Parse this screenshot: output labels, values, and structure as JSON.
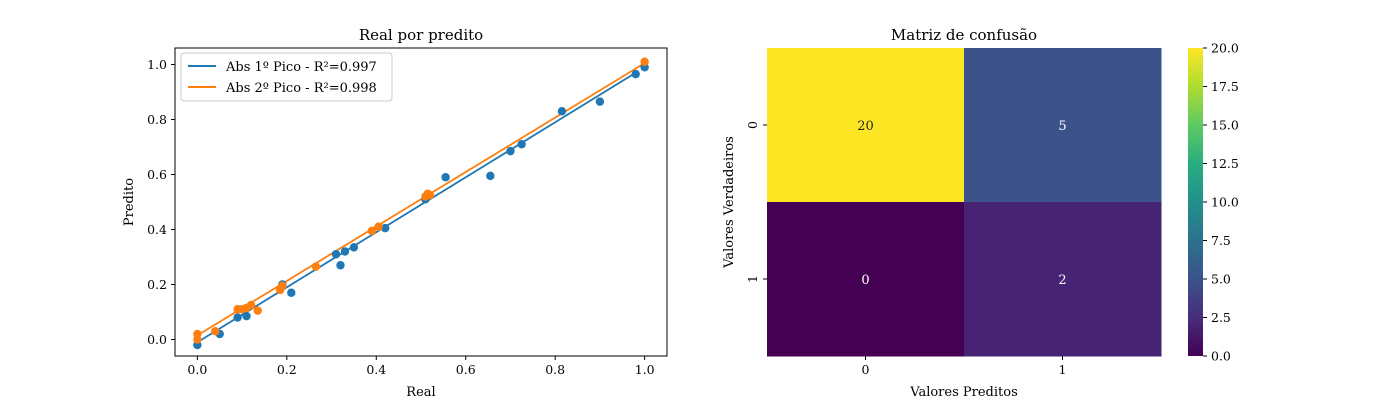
{
  "chart_data": [
    {
      "type": "scatter",
      "title": "Real por predito",
      "xlabel": "Real",
      "ylabel": "Predito",
      "xlim": [
        -0.05,
        1.05
      ],
      "ylim": [
        -0.06,
        1.06
      ],
      "xticks": [
        0.0,
        0.2,
        0.4,
        0.6,
        0.8,
        1.0
      ],
      "yticks": [
        0.0,
        0.2,
        0.4,
        0.6,
        0.8,
        1.0
      ],
      "xtick_labels": [
        "0.0",
        "0.2",
        "0.4",
        "0.6",
        "0.8",
        "1.0"
      ],
      "ytick_labels": [
        "0.0",
        "0.2",
        "0.4",
        "0.6",
        "0.8",
        "1.0"
      ],
      "grid": false,
      "legend_position": "top-left",
      "series": [
        {
          "name": "Abs 1º Pico - R²=0.997",
          "color": "#1f77b4",
          "fit": [
            [
              0.0,
              -0.01
            ],
            [
              0.98,
              0.97
            ]
          ],
          "points": [
            [
              0.0,
              -0.02
            ],
            [
              0.05,
              0.02
            ],
            [
              0.09,
              0.08
            ],
            [
              0.11,
              0.085
            ],
            [
              0.19,
              0.2
            ],
            [
              0.21,
              0.17
            ],
            [
              0.31,
              0.31
            ],
            [
              0.32,
              0.27
            ],
            [
              0.33,
              0.32
            ],
            [
              0.35,
              0.335
            ],
            [
              0.42,
              0.405
            ],
            [
              0.51,
              0.51
            ],
            [
              0.555,
              0.59
            ],
            [
              0.655,
              0.595
            ],
            [
              0.7,
              0.685
            ],
            [
              0.725,
              0.71
            ],
            [
              0.815,
              0.83
            ],
            [
              0.9,
              0.865
            ],
            [
              0.98,
              0.965
            ],
            [
              1.0,
              0.99
            ]
          ]
        },
        {
          "name": "Abs 2º Pico - R²=0.998",
          "color": "#ff7f0e",
          "fit": [
            [
              0.0,
              0.015
            ],
            [
              1.0,
              1.005
            ]
          ],
          "points": [
            [
              0.0,
              0.0
            ],
            [
              0.0,
              0.02
            ],
            [
              0.04,
              0.03
            ],
            [
              0.09,
              0.11
            ],
            [
              0.1,
              0.11
            ],
            [
              0.11,
              0.115
            ],
            [
              0.12,
              0.125
            ],
            [
              0.135,
              0.105
            ],
            [
              0.185,
              0.18
            ],
            [
              0.19,
              0.195
            ],
            [
              0.265,
              0.265
            ],
            [
              0.39,
              0.395
            ],
            [
              0.405,
              0.41
            ],
            [
              0.51,
              0.52
            ],
            [
              0.515,
              0.53
            ],
            [
              0.52,
              0.525
            ],
            [
              1.0,
              1.01
            ]
          ]
        }
      ]
    },
    {
      "type": "heatmap",
      "title": "Matriz de confusão",
      "xlabel": "Valores Preditos",
      "ylabel": "Valores Verdadeiros",
      "x_categories": [
        "0",
        "1"
      ],
      "y_categories": [
        "0",
        "1"
      ],
      "values": [
        [
          20,
          5
        ],
        [
          0,
          2
        ]
      ],
      "cell_labels": [
        [
          "20",
          "5"
        ],
        [
          "0",
          "2"
        ]
      ],
      "colormap": "viridis",
      "vmin": 0,
      "vmax": 20,
      "colorbar_ticks": [
        0.0,
        2.5,
        5.0,
        7.5,
        10.0,
        12.5,
        15.0,
        17.5,
        20.0
      ],
      "colorbar_tick_labels": [
        "0.0",
        "2.5",
        "5.0",
        "7.5",
        "10.0",
        "12.5",
        "15.0",
        "17.5",
        "20.0"
      ]
    }
  ]
}
